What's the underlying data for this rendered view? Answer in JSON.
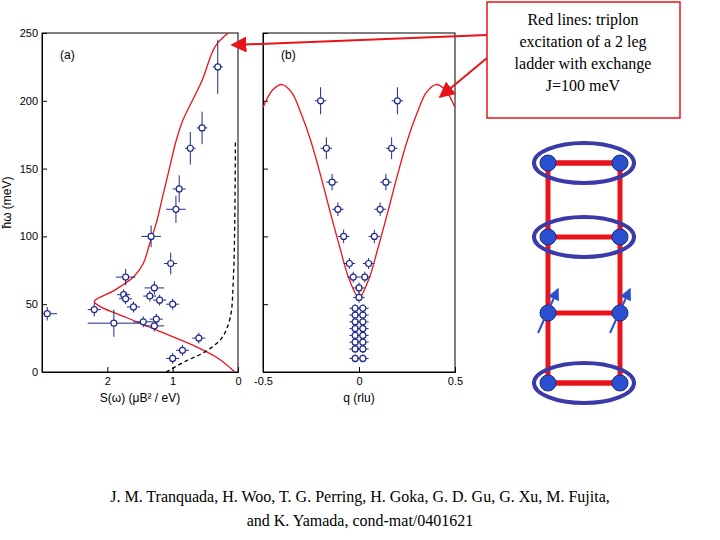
{
  "chart_data": [
    {
      "type": "scatter",
      "title": "(a)",
      "xlabel": "S(ω) (μB² / eV)",
      "ylabel": "ħω (meV)",
      "xlim": [
        3,
        0
      ],
      "xticks": [
        2,
        1,
        0
      ],
      "ylim": [
        0,
        250
      ],
      "yticks": [
        0,
        50,
        100,
        150,
        200,
        250
      ],
      "series": [
        {
          "type": "line",
          "color": "#e8141a",
          "line_style": "solid",
          "x": [
            0.05,
            0.3,
            0.7,
            1.2,
            1.7,
            2.1,
            2.2,
            1.9,
            1.6,
            1.45,
            1.35,
            1.25,
            1.15,
            1.05,
            0.95,
            0.85,
            0.7,
            0.55,
            0.35,
            0.15
          ],
          "values": [
            0,
            10,
            20,
            30,
            40,
            48,
            52,
            60,
            70,
            80,
            95,
            110,
            130,
            150,
            170,
            185,
            200,
            215,
            240,
            250
          ]
        },
        {
          "type": "line",
          "color": "#000000",
          "line_style": "dashed",
          "x": [
            1.1,
            0.8,
            0.5,
            0.25,
            0.12,
            0.07,
            0.05,
            0.04
          ],
          "values": [
            0,
            8,
            15,
            25,
            40,
            70,
            110,
            170
          ]
        },
        {
          "type": "scatter",
          "color": "#1f2a8c",
          "marker": "circle",
          "x": [
            0.31,
            0.55,
            0.73,
            0.9,
            0.95,
            1.33,
            1.03,
            1.72,
            1.28,
            1.75,
            1.72,
            1.6,
            1.35,
            1.2,
            1.0,
            2.92,
            2.2,
            1.9,
            1.45,
            1.28,
            1.25,
            1.0,
            0.85,
            0.6
          ],
          "values": [
            225,
            180,
            165,
            135,
            120,
            100,
            80,
            70,
            62,
            57,
            54,
            48,
            56,
            53,
            50,
            43,
            46,
            36,
            37,
            34,
            39,
            10,
            16,
            25
          ],
          "x_error": [
            0.08,
            0.08,
            0.08,
            0.1,
            0.15,
            0.15,
            0.1,
            0.15,
            0.15,
            0.1,
            0.1,
            0.1,
            0.1,
            0.1,
            0.1,
            0.15,
            0.1,
            0.4,
            0.15,
            0.15,
            0.1,
            0.1,
            0.1,
            0.1
          ],
          "y_error": [
            20,
            12,
            12,
            10,
            10,
            8,
            8,
            6,
            5,
            4,
            4,
            4,
            4,
            4,
            4,
            5,
            5,
            10,
            4,
            4,
            4,
            4,
            4,
            4
          ]
        }
      ]
    },
    {
      "type": "scatter",
      "title": "(b)",
      "xlabel": "q (rlu)",
      "xlim": [
        -0.5,
        0.5
      ],
      "xticks": [
        -0.5,
        0,
        0.5
      ],
      "ylim": [
        0,
        250
      ],
      "yticks": [
        0,
        50,
        100,
        150,
        200,
        250
      ],
      "tick_labels": "x",
      "series": [
        {
          "type": "line",
          "color": "#e8141a",
          "line_style": "solid",
          "x": [
            -0.5,
            -0.45,
            -0.4,
            -0.35,
            -0.3,
            -0.25,
            -0.2,
            -0.15,
            -0.1,
            -0.05,
            0,
            0.05,
            0.1,
            0.15,
            0.2,
            0.25,
            0.3,
            0.35,
            0.4,
            0.45,
            0.5
          ],
          "values": [
            195,
            208,
            212,
            206,
            190,
            170,
            145,
            118,
            92,
            68,
            55,
            68,
            92,
            118,
            145,
            170,
            190,
            206,
            212,
            208,
            195
          ]
        },
        {
          "type": "scatter",
          "color": "#1f2a8c",
          "marker": "circle",
          "x": [
            -0.2,
            0.2,
            -0.17,
            0.17,
            -0.14,
            0.14,
            -0.11,
            0.11,
            -0.08,
            0.08,
            -0.05,
            0.05,
            -0.03,
            0.03,
            0,
            0,
            -0.02,
            0.02,
            -0.02,
            0.02,
            -0.02,
            0.02,
            -0.02,
            0.02,
            -0.02,
            0.02,
            -0.02,
            0.02,
            -0.02,
            0.02,
            -0.02,
            0.02
          ],
          "values": [
            200,
            200,
            165,
            165,
            140,
            140,
            120,
            120,
            100,
            100,
            80,
            80,
            70,
            70,
            62,
            55,
            47,
            47,
            42,
            42,
            37,
            37,
            32,
            32,
            27,
            27,
            22,
            22,
            17,
            17,
            10,
            10
          ],
          "x_error": [
            0.03,
            0.03,
            0.03,
            0.03,
            0.03,
            0.03,
            0.03,
            0.03,
            0.03,
            0.03,
            0.03,
            0.03,
            0.03,
            0.03,
            0.03,
            0.03,
            0.03,
            0.03,
            0.03,
            0.03,
            0.03,
            0.03,
            0.03,
            0.03,
            0.03,
            0.03,
            0.03,
            0.03,
            0.03,
            0.03,
            0.03,
            0.03
          ],
          "y_error": [
            10,
            10,
            8,
            8,
            6,
            6,
            5,
            5,
            5,
            5,
            4,
            4,
            4,
            4,
            4,
            4,
            3,
            3,
            3,
            3,
            3,
            3,
            3,
            3,
            3,
            3,
            3,
            3,
            3,
            3,
            3,
            3
          ]
        }
      ]
    }
  ],
  "annotation": {
    "lines": [
      "Red lines: triplon",
      "excitation of a 2 leg",
      "ladder with exchange",
      "J=100 meV"
    ]
  },
  "citation": {
    "lines": [
      "J. M. Tranquada, H. Woo, T. G. Perring, H. Goka, G. D. Gu, G. Xu, M. Fujita,",
      "and K. Yamada, cond-mat/0401621"
    ]
  }
}
